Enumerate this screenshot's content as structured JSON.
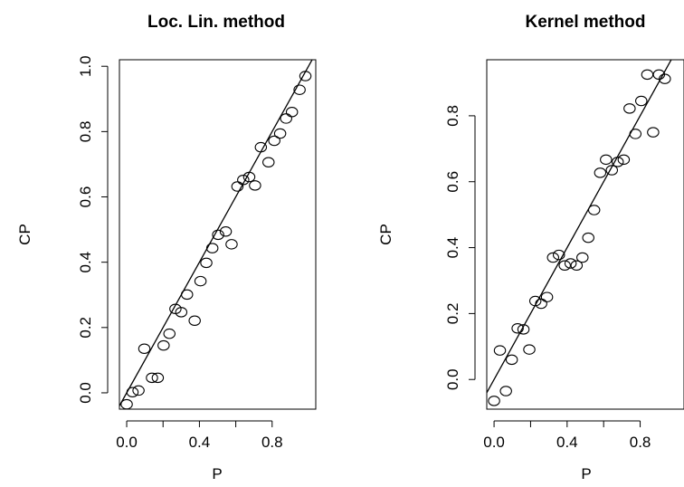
{
  "chart_data": [
    {
      "type": "scatter",
      "title": "Loc. Lin. method",
      "xlabel": "P",
      "ylabel": "CP",
      "xlim": [
        -0.04,
        1.04
      ],
      "ylim": [
        -0.05,
        1.02
      ],
      "xticks": [
        0.0,
        0.4,
        0.8
      ],
      "xtick_labels": [
        "0.0",
        "0.4",
        "0.8"
      ],
      "yticks": [
        0.0,
        0.2,
        0.4,
        0.6,
        0.8,
        1.0
      ],
      "ytick_labels": [
        "0.0",
        "0.2",
        "0.4",
        "0.6",
        "0.8",
        "1.0"
      ],
      "reference_line": {
        "intercept": 0.0,
        "slope": 1.0
      },
      "grid": false,
      "points": [
        {
          "x": 0.0,
          "y": -0.035
        },
        {
          "x": 0.032,
          "y": 0.002
        },
        {
          "x": 0.065,
          "y": 0.007
        },
        {
          "x": 0.097,
          "y": 0.135
        },
        {
          "x": 0.139,
          "y": 0.046
        },
        {
          "x": 0.171,
          "y": 0.046
        },
        {
          "x": 0.203,
          "y": 0.145
        },
        {
          "x": 0.235,
          "y": 0.181
        },
        {
          "x": 0.268,
          "y": 0.257
        },
        {
          "x": 0.3,
          "y": 0.247
        },
        {
          "x": 0.332,
          "y": 0.301
        },
        {
          "x": 0.374,
          "y": 0.221
        },
        {
          "x": 0.406,
          "y": 0.342
        },
        {
          "x": 0.438,
          "y": 0.398
        },
        {
          "x": 0.471,
          "y": 0.443
        },
        {
          "x": 0.503,
          "y": 0.484
        },
        {
          "x": 0.545,
          "y": 0.494
        },
        {
          "x": 0.577,
          "y": 0.455
        },
        {
          "x": 0.609,
          "y": 0.632
        },
        {
          "x": 0.641,
          "y": 0.652
        },
        {
          "x": 0.674,
          "y": 0.661
        },
        {
          "x": 0.706,
          "y": 0.635
        },
        {
          "x": 0.738,
          "y": 0.752
        },
        {
          "x": 0.78,
          "y": 0.706
        },
        {
          "x": 0.812,
          "y": 0.772
        },
        {
          "x": 0.844,
          "y": 0.794
        },
        {
          "x": 0.877,
          "y": 0.84
        },
        {
          "x": 0.909,
          "y": 0.86
        },
        {
          "x": 0.951,
          "y": 0.928
        },
        {
          "x": 0.983,
          "y": 0.97
        }
      ]
    },
    {
      "type": "scatter",
      "title": "Kernel  method",
      "xlabel": "P",
      "ylabel": "CP",
      "xlim": [
        -0.04,
        1.04
      ],
      "ylim": [
        -0.09,
        0.97
      ],
      "xticks": [
        0.0,
        0.4,
        0.8
      ],
      "xtick_labels": [
        "0.0",
        "0.4",
        "0.8"
      ],
      "yticks": [
        0.0,
        0.2,
        0.4,
        0.6,
        0.8
      ],
      "ytick_labels": [
        "0.0",
        "0.2",
        "0.4",
        "0.6",
        "0.8"
      ],
      "reference_line": {
        "intercept": 0.0,
        "slope": 1.0
      },
      "grid": false,
      "points": [
        {
          "x": 0.0,
          "y": -0.065
        },
        {
          "x": 0.032,
          "y": 0.088
        },
        {
          "x": 0.065,
          "y": -0.035
        },
        {
          "x": 0.097,
          "y": 0.06
        },
        {
          "x": 0.129,
          "y": 0.155
        },
        {
          "x": 0.161,
          "y": 0.152
        },
        {
          "x": 0.193,
          "y": 0.091
        },
        {
          "x": 0.226,
          "y": 0.238
        },
        {
          "x": 0.258,
          "y": 0.23
        },
        {
          "x": 0.29,
          "y": 0.25
        },
        {
          "x": 0.323,
          "y": 0.37
        },
        {
          "x": 0.355,
          "y": 0.378
        },
        {
          "x": 0.387,
          "y": 0.346
        },
        {
          "x": 0.419,
          "y": 0.352
        },
        {
          "x": 0.452,
          "y": 0.346
        },
        {
          "x": 0.484,
          "y": 0.37
        },
        {
          "x": 0.516,
          "y": 0.43
        },
        {
          "x": 0.548,
          "y": 0.514
        },
        {
          "x": 0.581,
          "y": 0.627
        },
        {
          "x": 0.613,
          "y": 0.667
        },
        {
          "x": 0.645,
          "y": 0.635
        },
        {
          "x": 0.677,
          "y": 0.66
        },
        {
          "x": 0.71,
          "y": 0.667
        },
        {
          "x": 0.742,
          "y": 0.822
        },
        {
          "x": 0.774,
          "y": 0.745
        },
        {
          "x": 0.806,
          "y": 0.845
        },
        {
          "x": 0.839,
          "y": 0.925
        },
        {
          "x": 0.871,
          "y": 0.75
        },
        {
          "x": 0.903,
          "y": 0.925
        },
        {
          "x": 0.935,
          "y": 0.912
        }
      ]
    }
  ]
}
